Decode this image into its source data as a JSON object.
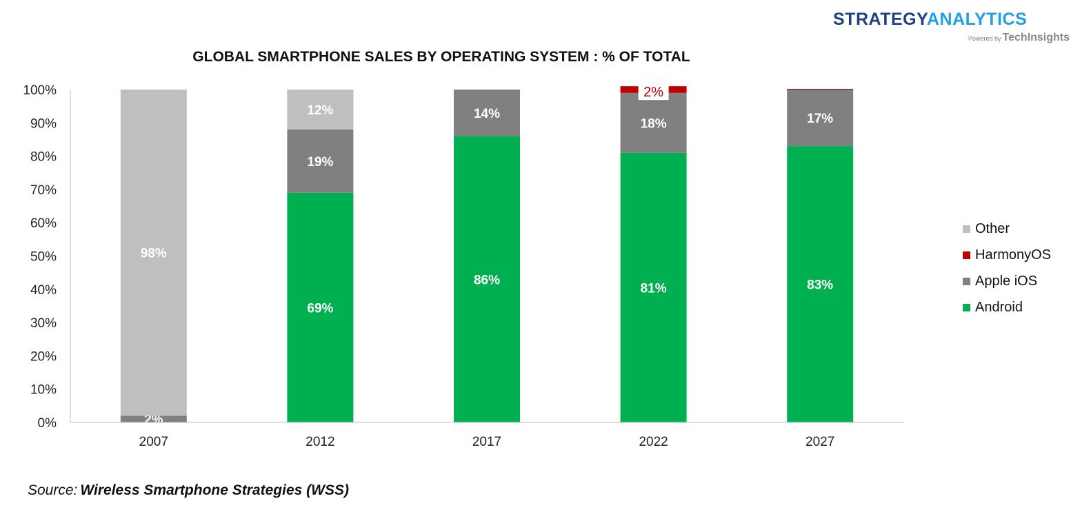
{
  "logo": {
    "part1": "STRATEGY",
    "part2": "ANALYTICS",
    "powered_by": "Powered by",
    "brand": "TechInsights",
    "color_primary": "#1f3f86",
    "color_secondary": "#1ea0e6"
  },
  "source": {
    "prefix": "Source:",
    "name": "Wireless Smartphone Strategies (WSS)"
  },
  "chart_data": {
    "type": "bar",
    "stacked": true,
    "title": "GLOBAL SMARTPHONE SALES BY OPERATING SYSTEM : % OF TOTAL",
    "xlabel": "",
    "ylabel": "",
    "ylim": [
      0,
      100
    ],
    "yticks": [
      "0%",
      "10%",
      "20%",
      "30%",
      "40%",
      "50%",
      "60%",
      "70%",
      "80%",
      "90%",
      "100%"
    ],
    "categories": [
      "2007",
      "2012",
      "2017",
      "2022",
      "2027"
    ],
    "legend_position": "right",
    "grid": false,
    "series": [
      {
        "name": "Android",
        "color": "#00b050",
        "values": [
          0,
          69,
          86,
          81,
          83
        ],
        "labels": [
          "",
          "69%",
          "86%",
          "81%",
          "83%"
        ]
      },
      {
        "name": "Apple iOS",
        "color": "#808080",
        "values": [
          2,
          19,
          14,
          18,
          17
        ],
        "labels": [
          "2%",
          "19%",
          "14%",
          "18%",
          "17%"
        ]
      },
      {
        "name": "HarmonyOS",
        "color": "#c00000",
        "values": [
          0,
          0,
          0,
          2,
          0.2
        ],
        "labels": [
          "",
          "",
          "",
          "2%",
          ""
        ]
      },
      {
        "name": "Other",
        "color": "#bfbfbf",
        "values": [
          98,
          12,
          0,
          0,
          0
        ],
        "labels": [
          "98%",
          "12%",
          "",
          "",
          ""
        ]
      }
    ],
    "legend_order": [
      "Other",
      "HarmonyOS",
      "Apple iOS",
      "Android"
    ]
  }
}
